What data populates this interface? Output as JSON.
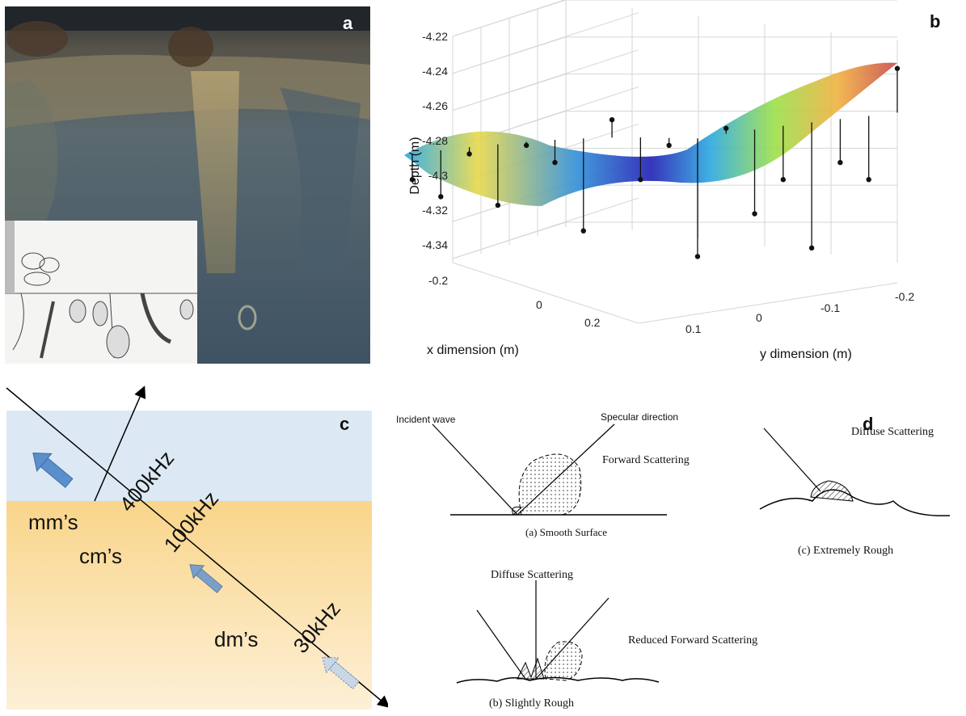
{
  "panels": {
    "a": {
      "label": "a"
    },
    "b": {
      "label": "b"
    },
    "c": {
      "label": "c"
    },
    "d": {
      "label": "d"
    }
  },
  "chart_data": {
    "type": "scatter",
    "title": "",
    "xlabel": "x dimension (m)",
    "ylabel": "y dimension (m)",
    "zlabel": "Depth (m)",
    "x_ticks": [
      "-0.2",
      "0",
      "0.2"
    ],
    "y_ticks": [
      "0.1",
      "0",
      "-0.1",
      "-0.2"
    ],
    "z_ticks": [
      "-4.22",
      "-4.24",
      "-4.26",
      "-4.28",
      "-4.3",
      "-4.32",
      "-4.34"
    ],
    "zlim": [
      -4.35,
      -4.22
    ],
    "grid": true,
    "surface_colormap": [
      "#1f1fb4",
      "#2aa7e0",
      "#5fd6b0",
      "#e6e64a",
      "#f0a040",
      "#c84a4a"
    ],
    "points": [
      {
        "x": -0.22,
        "y": 0.22,
        "z": -4.3
      },
      {
        "x": -0.16,
        "y": 0.2,
        "z": -4.31
      },
      {
        "x": -0.12,
        "y": 0.15,
        "z": -4.285
      },
      {
        "x": -0.08,
        "y": 0.12,
        "z": -4.315
      },
      {
        "x": -0.05,
        "y": 0.1,
        "z": -4.28
      },
      {
        "x": -0.02,
        "y": 0.06,
        "z": -4.29
      },
      {
        "x": 0.0,
        "y": 0.05,
        "z": -4.33
      },
      {
        "x": 0.02,
        "y": 0.02,
        "z": -4.265
      },
      {
        "x": 0.05,
        "y": 0.0,
        "z": -4.3
      },
      {
        "x": 0.08,
        "y": -0.02,
        "z": -4.28
      },
      {
        "x": 0.1,
        "y": -0.05,
        "z": -4.345
      },
      {
        "x": 0.12,
        "y": -0.06,
        "z": -4.27
      },
      {
        "x": 0.15,
        "y": -0.08,
        "z": -4.32
      },
      {
        "x": 0.18,
        "y": -0.1,
        "z": -4.3
      },
      {
        "x": 0.2,
        "y": -0.12,
        "z": -4.34
      },
      {
        "x": 0.22,
        "y": -0.15,
        "z": -4.29
      },
      {
        "x": 0.24,
        "y": -0.18,
        "z": -4.3
      },
      {
        "x": 0.25,
        "y": -0.2,
        "z": -4.235
      }
    ]
  },
  "panel_c": {
    "freq_400": "400kHz",
    "freq_100": "100kHz",
    "freq_30": "30kHz",
    "scale_mm": "mm’s",
    "scale_cm": "cm’s",
    "scale_dm": "dm’s",
    "water_color": "#dce9f4",
    "sediment_color": "#f9d88d",
    "arrow_color": "#5b8fcb"
  },
  "panel_d": {
    "incident_wave": "Incident wave",
    "specular_direction": "Specular direction",
    "forward_scattering": "Forward Scattering",
    "smooth_surface": "(a)  Smooth Surface",
    "diffuse_scattering_b": "Diffuse Scattering",
    "reduced_forward": "Reduced Forward Scattering",
    "slightly_rough": "(b)  Slightly Rough",
    "diffuse_scattering_c": "Diffuse Scattering",
    "extremely_rough": "(c) Extremely Rough"
  }
}
